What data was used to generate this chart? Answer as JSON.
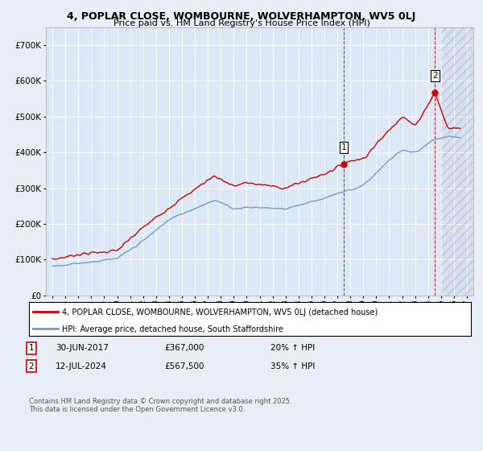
{
  "title_line1": "4, POPLAR CLOSE, WOMBOURNE, WOLVERHAMPTON, WV5 0LJ",
  "title_line2": "Price paid vs. HM Land Registry's House Price Index (HPI)",
  "background_color": "#e8eef5",
  "plot_bg_color": "#dce8f5",
  "grid_color": "#ffffff",
  "red_line_color": "#cc0000",
  "blue_line_color": "#7799cc",
  "marker1_date_x": 2017.49,
  "marker2_date_x": 2024.54,
  "marker1_price": 367000,
  "marker2_price": 567500,
  "annotation1_date": "30-JUN-2017",
  "annotation1_price": "£367,000",
  "annotation1_pct": "20% ↑ HPI",
  "annotation2_date": "12-JUL-2024",
  "annotation2_price": "£567,500",
  "annotation2_pct": "35% ↑ HPI",
  "footer": "Contains HM Land Registry data © Crown copyright and database right 2025.\nThis data is licensed under the Open Government Licence v3.0.",
  "legend_line1": "4, POPLAR CLOSE, WOMBOURNE, WOLVERHAMPTON, WV5 0LJ (detached house)",
  "legend_line2": "HPI: Average price, detached house, South Staffordshire",
  "xmin": 1994.5,
  "xmax": 2027.5,
  "ymin": 0,
  "ymax": 750000,
  "hatch_start": 2025.0
}
